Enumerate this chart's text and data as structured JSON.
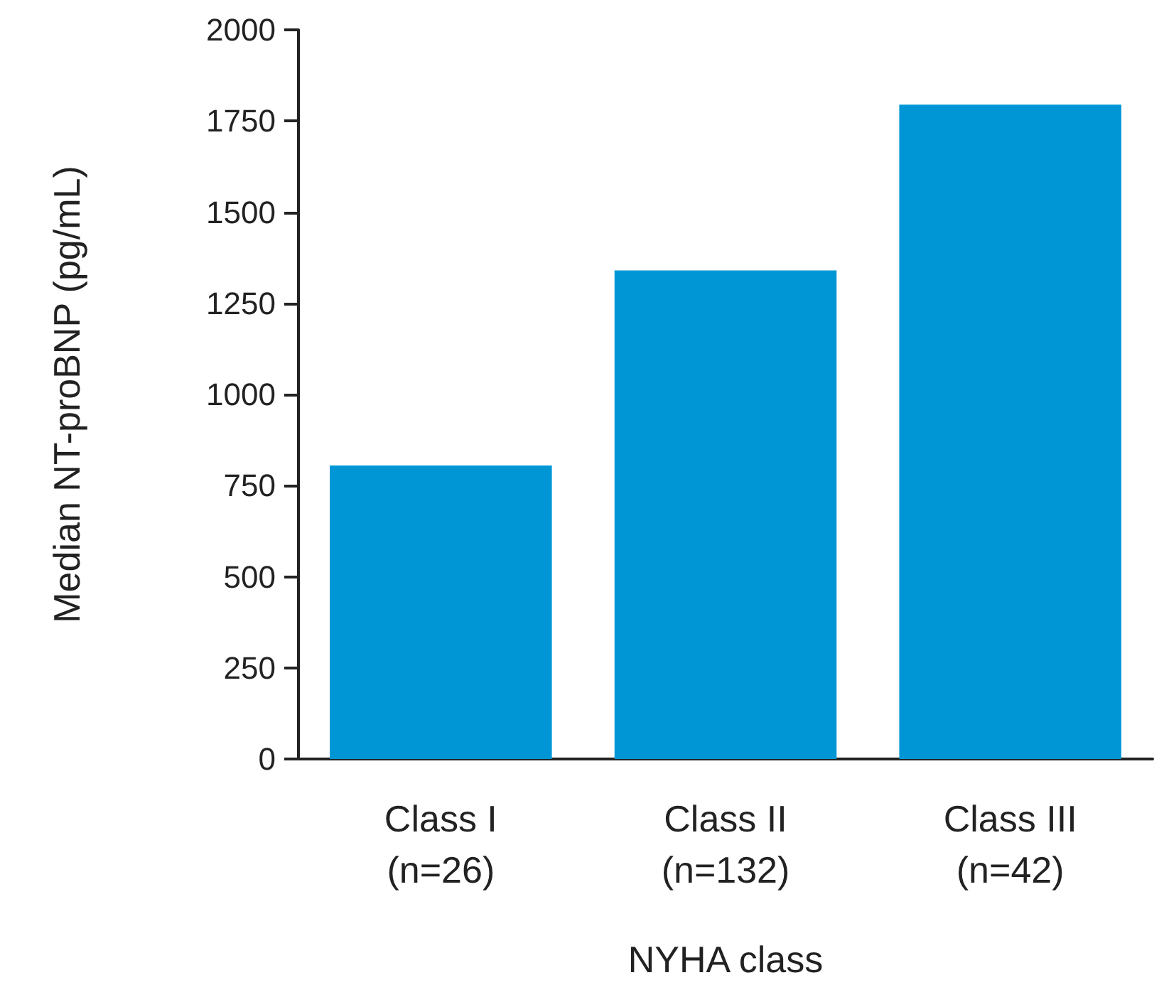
{
  "chart_data": {
    "type": "bar",
    "xlabel": "NYHA class",
    "ylabel": "Median NT-proBNP (pg/mL)",
    "categories": [
      "Class I\n(n=26)",
      "Class II\n(n=132)",
      "Class III\n(n=42)"
    ],
    "values": [
      805,
      1340,
      1795
    ],
    "color": "#0096d6",
    "ylim": [
      0,
      2000
    ],
    "yticks": [
      0,
      250,
      500,
      750,
      1000,
      1250,
      1500,
      1750,
      2000
    ],
    "grid": false
  }
}
